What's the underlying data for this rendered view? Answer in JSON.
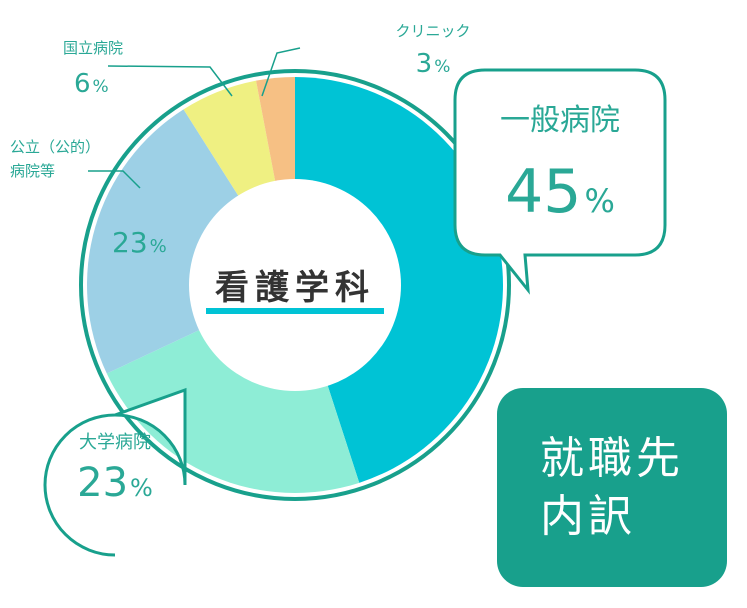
{
  "chart_data": {
    "type": "donut",
    "title": "看護学科",
    "slices": [
      {
        "label": "一般病院",
        "value": 45,
        "value_text": "45",
        "color": "#00c3d5"
      },
      {
        "label": "大学病院",
        "value": 23,
        "value_text": "23",
        "color": "#8eedd6"
      },
      {
        "label": "公立（公的）病院等",
        "value": 23,
        "value_text": "23",
        "color": "#9dd0e6"
      },
      {
        "label": "国立病院",
        "value": 6,
        "value_text": "6",
        "color": "#eff082"
      },
      {
        "label": "クリニック",
        "value": 3,
        "value_text": "3",
        "color": "#f6c084"
      }
    ],
    "unit": "%",
    "colors": {
      "ring": "#18a08c",
      "text": "#2aa896",
      "underline": "#00c3d5",
      "badge": "#18a08c"
    }
  },
  "labels": {
    "general_name": "一般病院",
    "general_value": "45",
    "univ_name": "大学病院",
    "univ_value": "23",
    "public_name_line1": "公立（公的）",
    "public_name_line2": "病院等",
    "public_value": "23",
    "national_name": "国立病院",
    "national_value": "6",
    "clinic_name": "クリニック",
    "clinic_value": "3",
    "unit": "%"
  },
  "badge": {
    "text": "就職先\n内訳"
  }
}
